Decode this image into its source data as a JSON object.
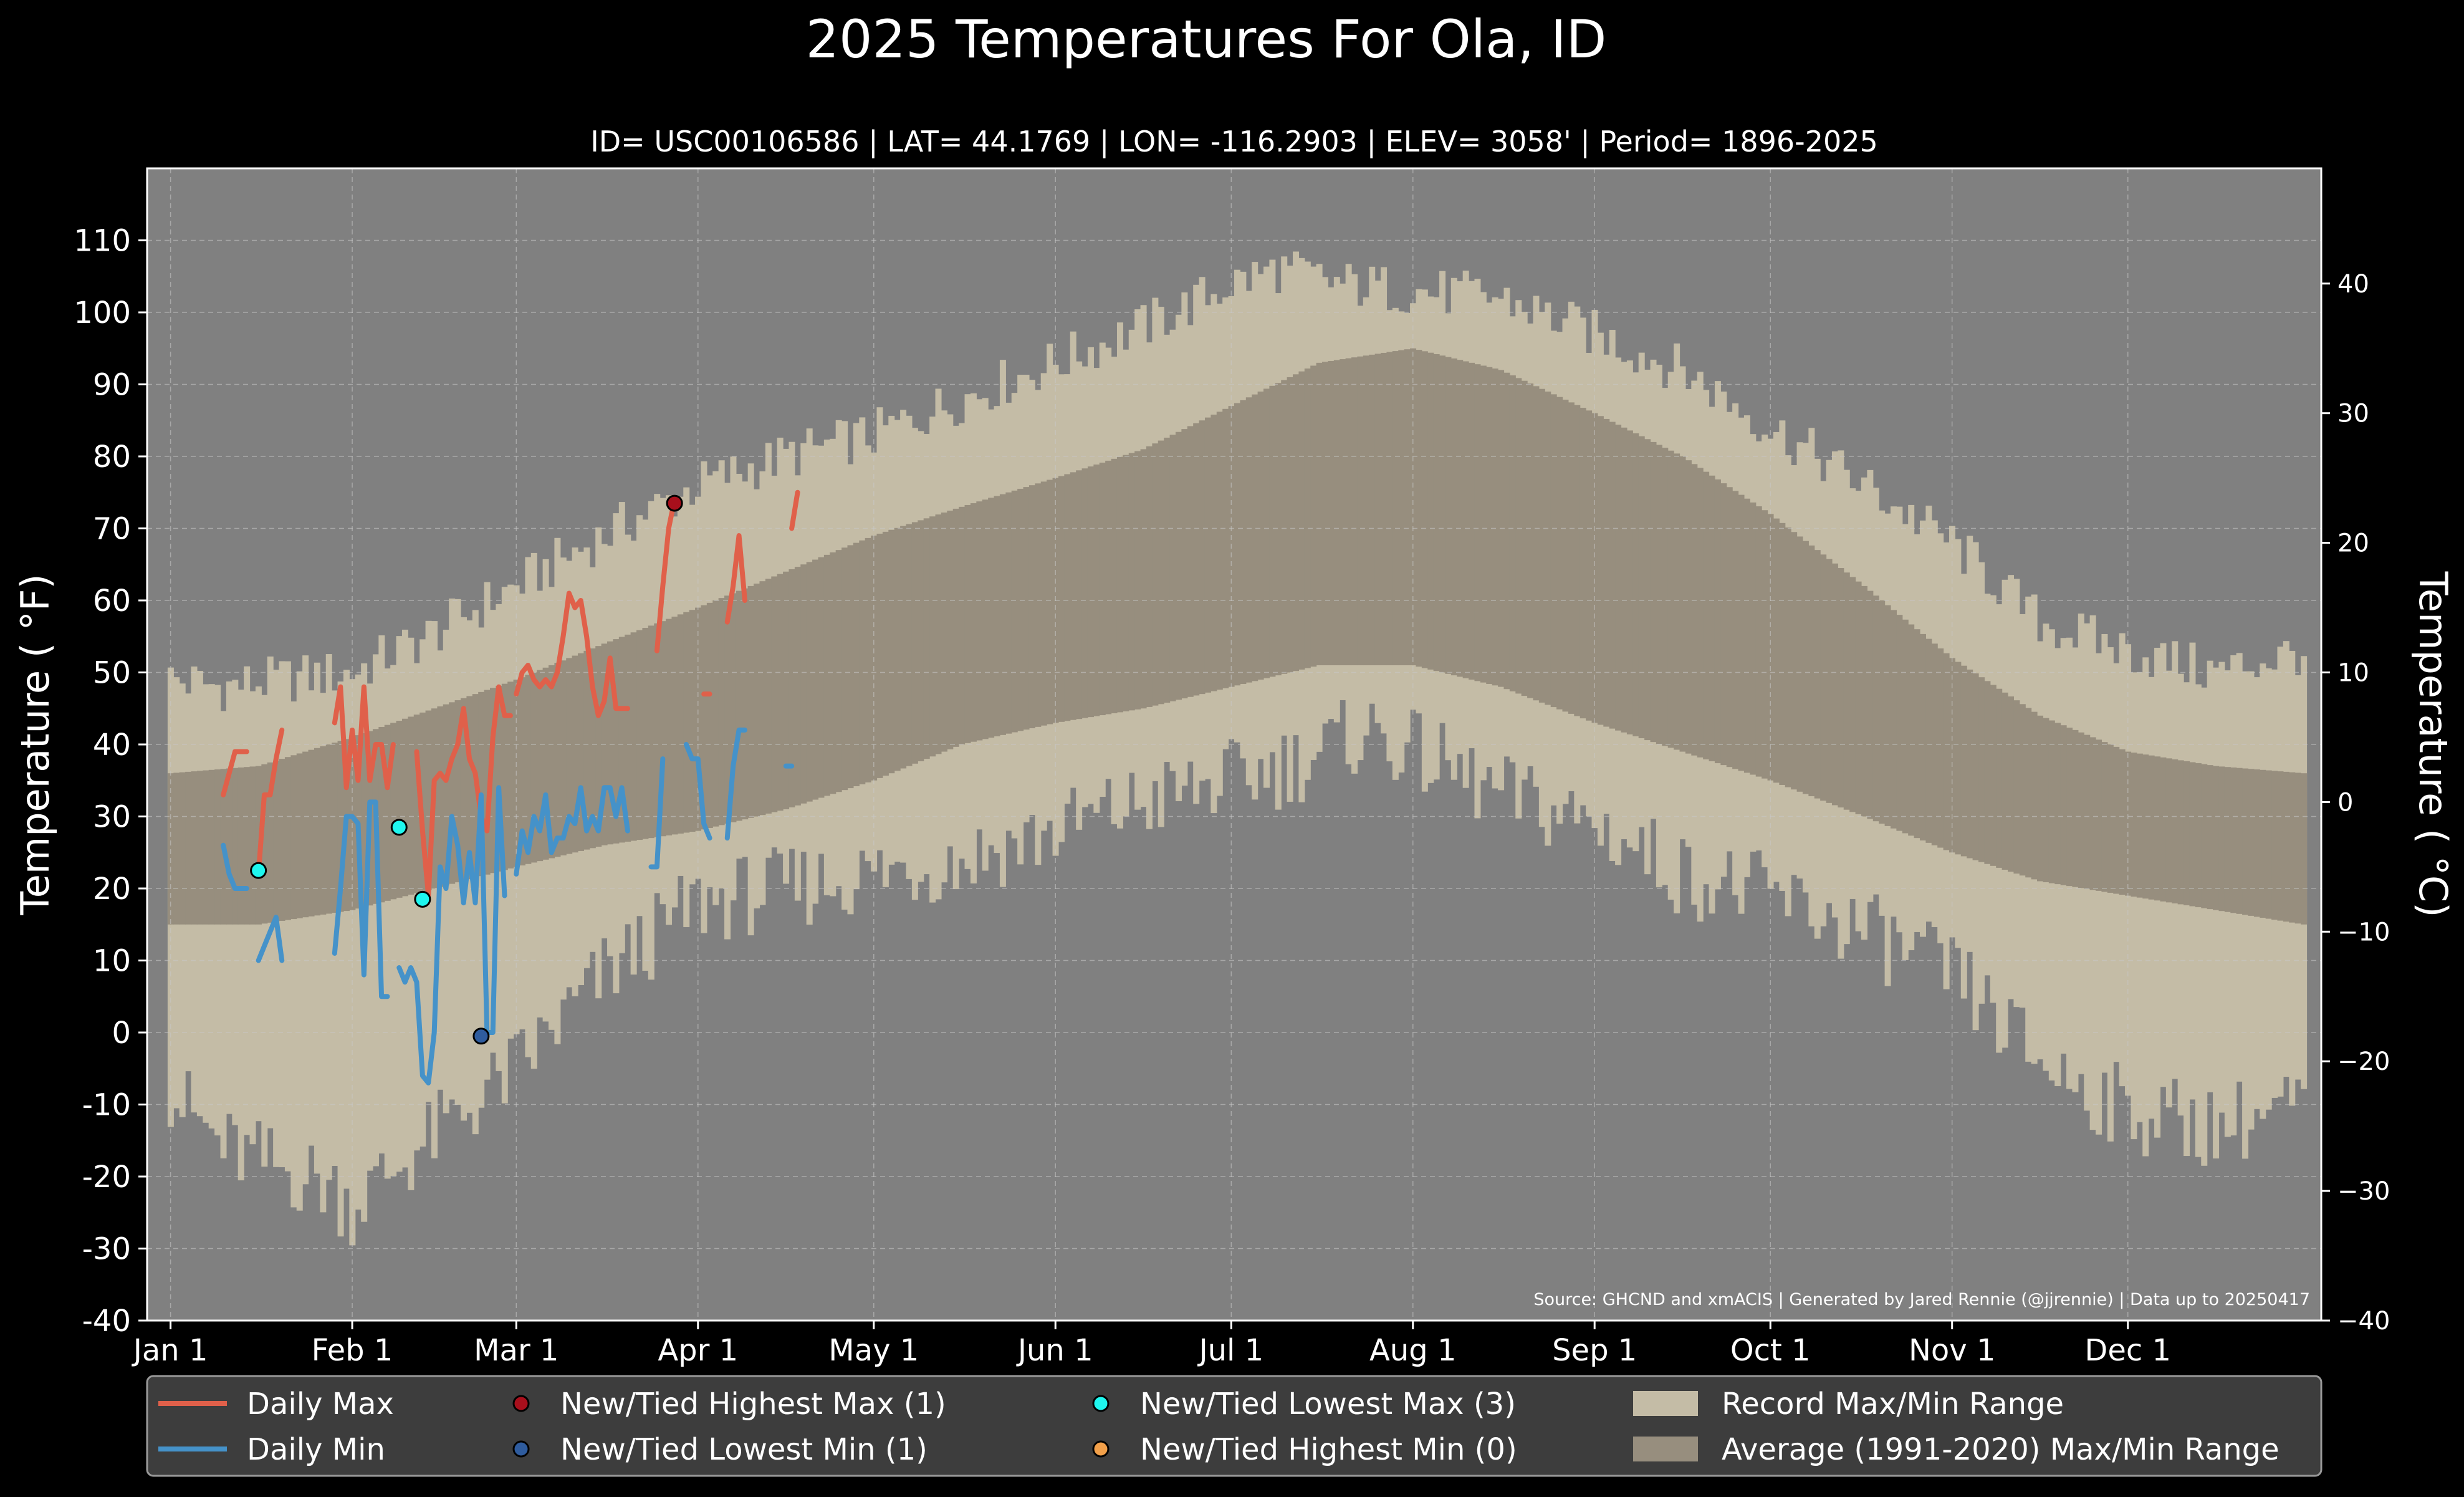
{
  "chart_data": {
    "type": "line",
    "title": "2025 Temperatures For Ola, ID",
    "subtitle": "ID= USC00106586 | LAT= 44.1769 | LON= -116.2903 | ELEV= 3058' | Period= 1896-2025",
    "ylabel_left": "Temperature ( $^\\circ$F)",
    "ylabel_left_display": "Temperature ( °F)",
    "ylabel_right_display": "Temperature ( °C)",
    "ylim_f": [
      -40,
      120
    ],
    "yticks_f": [
      -40,
      -30,
      -20,
      -10,
      0,
      10,
      20,
      30,
      40,
      50,
      60,
      70,
      80,
      90,
      100,
      110
    ],
    "ylim_c": [
      -40,
      48.9
    ],
    "yticks_c": [
      -40,
      -30,
      -20,
      -10,
      0,
      10,
      20,
      30,
      40
    ],
    "xlim": [
      -3,
      368
    ],
    "month_ticks": [
      {
        "day": 1,
        "label": "Jan 1"
      },
      {
        "day": 32,
        "label": "Feb 1"
      },
      {
        "day": 60,
        "label": "Mar 1"
      },
      {
        "day": 91,
        "label": "Apr 1"
      },
      {
        "day": 121,
        "label": "May 1"
      },
      {
        "day": 152,
        "label": "Jun 1"
      },
      {
        "day": 182,
        "label": "Jul 1"
      },
      {
        "day": 213,
        "label": "Aug 1"
      },
      {
        "day": 244,
        "label": "Sep 1"
      },
      {
        "day": 274,
        "label": "Oct 1"
      },
      {
        "day": 305,
        "label": "Nov 1"
      },
      {
        "day": 335,
        "label": "Dec 1"
      }
    ],
    "grid": true,
    "legend_position": "bottom",
    "source_note": "Source: GHCND and xmACIS | Generated by Jared Rennie (@jjrennie) | Data up to 20250417",
    "record_max_profile": {
      "days": [
        1,
        10,
        20,
        32,
        45,
        60,
        75,
        91,
        106,
        121,
        136,
        152,
        167,
        175,
        182,
        190,
        200,
        213,
        228,
        244,
        259,
        274,
        290,
        305,
        320,
        335,
        350,
        365
      ],
      "values": [
        49,
        48,
        49,
        50,
        55,
        62,
        69,
        76,
        80,
        83,
        88,
        93,
        98,
        101,
        104,
        106,
        104,
        103,
        102,
        97,
        92,
        84,
        76,
        68,
        57,
        53,
        50,
        53
      ]
    },
    "record_min_profile": {
      "days": [
        1,
        10,
        20,
        28,
        32,
        45,
        60,
        75,
        91,
        106,
        121,
        136,
        152,
        167,
        182,
        195,
        205,
        213,
        228,
        244,
        259,
        274,
        290,
        305,
        320,
        335,
        350,
        365
      ],
      "values": [
        -8,
        -16,
        -19,
        -21,
        -24,
        -15,
        -5,
        8,
        18,
        20,
        22,
        24,
        28,
        32,
        35,
        38,
        42,
        39,
        33,
        29,
        22,
        19,
        14,
        8,
        -4,
        -11,
        -13,
        -10
      ]
    },
    "avg_max_profile": {
      "days": [
        1,
        16,
        32,
        46,
        60,
        75,
        91,
        106,
        121,
        136,
        152,
        167,
        182,
        197,
        213,
        228,
        244,
        259,
        274,
        290,
        305,
        320,
        335,
        350,
        365
      ],
      "values": [
        36,
        37,
        41,
        45,
        49,
        54,
        59,
        64,
        69,
        73,
        77,
        81,
        87,
        93,
        95,
        92,
        86,
        80,
        72,
        62,
        52,
        44,
        39,
        37,
        36
      ]
    },
    "avg_min_profile": {
      "days": [
        1,
        16,
        32,
        46,
        60,
        75,
        91,
        106,
        121,
        136,
        152,
        167,
        182,
        197,
        213,
        228,
        244,
        259,
        274,
        290,
        305,
        320,
        335,
        350,
        365
      ],
      "values": [
        15,
        15,
        17,
        20,
        23,
        26,
        28,
        31,
        35,
        40,
        43,
        45,
        48,
        51,
        51,
        48,
        43,
        39,
        35,
        30,
        25,
        21,
        19,
        17,
        15
      ]
    },
    "series": [
      {
        "name": "Daily Max",
        "color": "#e0604a",
        "segments": [
          {
            "x": [
              10,
              11,
              12,
              13,
              14
            ],
            "y": [
              33,
              36,
              39,
              39,
              39
            ]
          },
          {
            "x": [
              16,
              17,
              18,
              19,
              20
            ],
            "y": [
              22,
              33,
              33,
              38,
              42
            ]
          },
          {
            "x": [
              29,
              30,
              31,
              32,
              33,
              34,
              35,
              36,
              37,
              38,
              39
            ],
            "y": [
              43,
              48,
              34,
              42,
              35,
              48,
              35,
              40,
              40,
              34,
              40
            ]
          },
          {
            "x": [
              43,
              44,
              45,
              46,
              47,
              48,
              49,
              50,
              51,
              52,
              53,
              54,
              55,
              56,
              57,
              58,
              59
            ],
            "y": [
              39,
              28,
              19,
              35,
              36,
              35,
              38,
              40,
              45,
              38,
              36,
              30,
              28,
              41,
              48,
              44,
              44
            ]
          },
          {
            "x": [
              60,
              61,
              62,
              63,
              64,
              65,
              66,
              67,
              68,
              69,
              70,
              71,
              72,
              73,
              74,
              75,
              76,
              77,
              78,
              79
            ],
            "y": [
              47,
              50,
              51,
              49,
              48,
              49,
              48,
              50,
              55,
              61,
              59,
              60,
              55,
              48,
              44,
              46,
              52,
              45,
              45,
              45
            ]
          },
          {
            "x": [
              84,
              85,
              86,
              87
            ],
            "y": [
              53,
              62,
              70,
              74
            ]
          },
          {
            "x": [
              92,
              93
            ],
            "y": [
              47,
              47
            ]
          },
          {
            "x": [
              96,
              97,
              98,
              99
            ],
            "y": [
              57,
              62,
              69,
              60
            ]
          },
          {
            "x": [
              107,
              108
            ],
            "y": [
              70,
              75
            ]
          }
        ]
      },
      {
        "name": "Daily Min",
        "color": "#4592c9",
        "segments": [
          {
            "x": [
              10,
              11,
              12,
              13,
              14
            ],
            "y": [
              26,
              22,
              20,
              20,
              20
            ]
          },
          {
            "x": [
              16,
              17,
              18,
              19,
              20
            ],
            "y": [
              10,
              12,
              14,
              16,
              10
            ]
          },
          {
            "x": [
              29,
              30,
              31,
              32,
              33,
              34,
              35,
              36,
              37,
              38
            ],
            "y": [
              11,
              20,
              30,
              30,
              29,
              8,
              32,
              32,
              5,
              5
            ]
          },
          {
            "x": [
              40,
              41,
              42,
              43,
              44,
              45,
              46,
              47,
              48,
              49,
              50,
              51,
              52,
              53,
              54,
              55,
              56,
              57,
              58
            ],
            "y": [
              9,
              7,
              9,
              7,
              -6,
              -7,
              0,
              23,
              20,
              30,
              26,
              18,
              25,
              18,
              33,
              0,
              0,
              34,
              19
            ]
          },
          {
            "x": [
              60,
              61,
              62,
              63,
              64,
              65,
              66,
              67,
              68,
              69,
              70,
              71,
              72,
              73,
              74,
              75,
              76,
              77,
              78,
              79
            ],
            "y": [
              22,
              28,
              25,
              30,
              28,
              33,
              25,
              27,
              27,
              30,
              29,
              34,
              28,
              30,
              28,
              34,
              34,
              30,
              34,
              28
            ]
          },
          {
            "x": [
              83,
              84,
              85
            ],
            "y": [
              23,
              23,
              38
            ]
          },
          {
            "x": [
              89,
              90,
              91,
              92,
              93
            ],
            "y": [
              40,
              38,
              38,
              29,
              27
            ]
          },
          {
            "x": [
              96,
              97,
              98,
              99
            ],
            "y": [
              27,
              37,
              42,
              42
            ]
          },
          {
            "x": [
              106,
              107
            ],
            "y": [
              37,
              37
            ]
          }
        ]
      }
    ],
    "record_points": [
      {
        "name": "New/Tied Highest Max",
        "day": 87,
        "value": 73.5,
        "color": "#a80f1c"
      },
      {
        "name": "New/Tied Lowest Min",
        "day": 54,
        "value": -0.5,
        "color": "#2f5c9e"
      },
      {
        "name": "New/Tied Lowest Max",
        "day": 16,
        "value": 22.5,
        "color": "#1ff7ef"
      },
      {
        "name": "New/Tied Lowest Max",
        "day": 40,
        "value": 28.5,
        "color": "#1ff7ef"
      },
      {
        "name": "New/Tied Lowest Max",
        "day": 44,
        "value": 18.5,
        "color": "#1ff7ef"
      }
    ],
    "legend": [
      {
        "label": "Daily Max",
        "kind": "line",
        "color": "#e0604a"
      },
      {
        "label": "Daily Min",
        "kind": "line",
        "color": "#4592c9"
      },
      {
        "label": "New/Tied Highest Max (1)",
        "kind": "dot",
        "color": "#a80f1c"
      },
      {
        "label": "New/Tied Lowest Min (1)",
        "kind": "dot",
        "color": "#2f5c9e"
      },
      {
        "label": "New/Tied Lowest Max (3)",
        "kind": "dot",
        "color": "#1ff7ef"
      },
      {
        "label": "New/Tied Highest Min (0)",
        "kind": "dot",
        "color": "#f2a04a"
      },
      {
        "label": "Record Max/Min Range",
        "kind": "patch",
        "color": "#c4bca6"
      },
      {
        "label": "Average (1991-2020) Max/Min Range",
        "kind": "patch",
        "color": "#978e7e"
      }
    ],
    "colors": {
      "background": "#000000",
      "plot_background": "#808080",
      "record_band": "#c4bca6",
      "average_band": "#978e7e",
      "grid": "#c8c8c8",
      "legend_background": "#3d3d3d"
    }
  }
}
